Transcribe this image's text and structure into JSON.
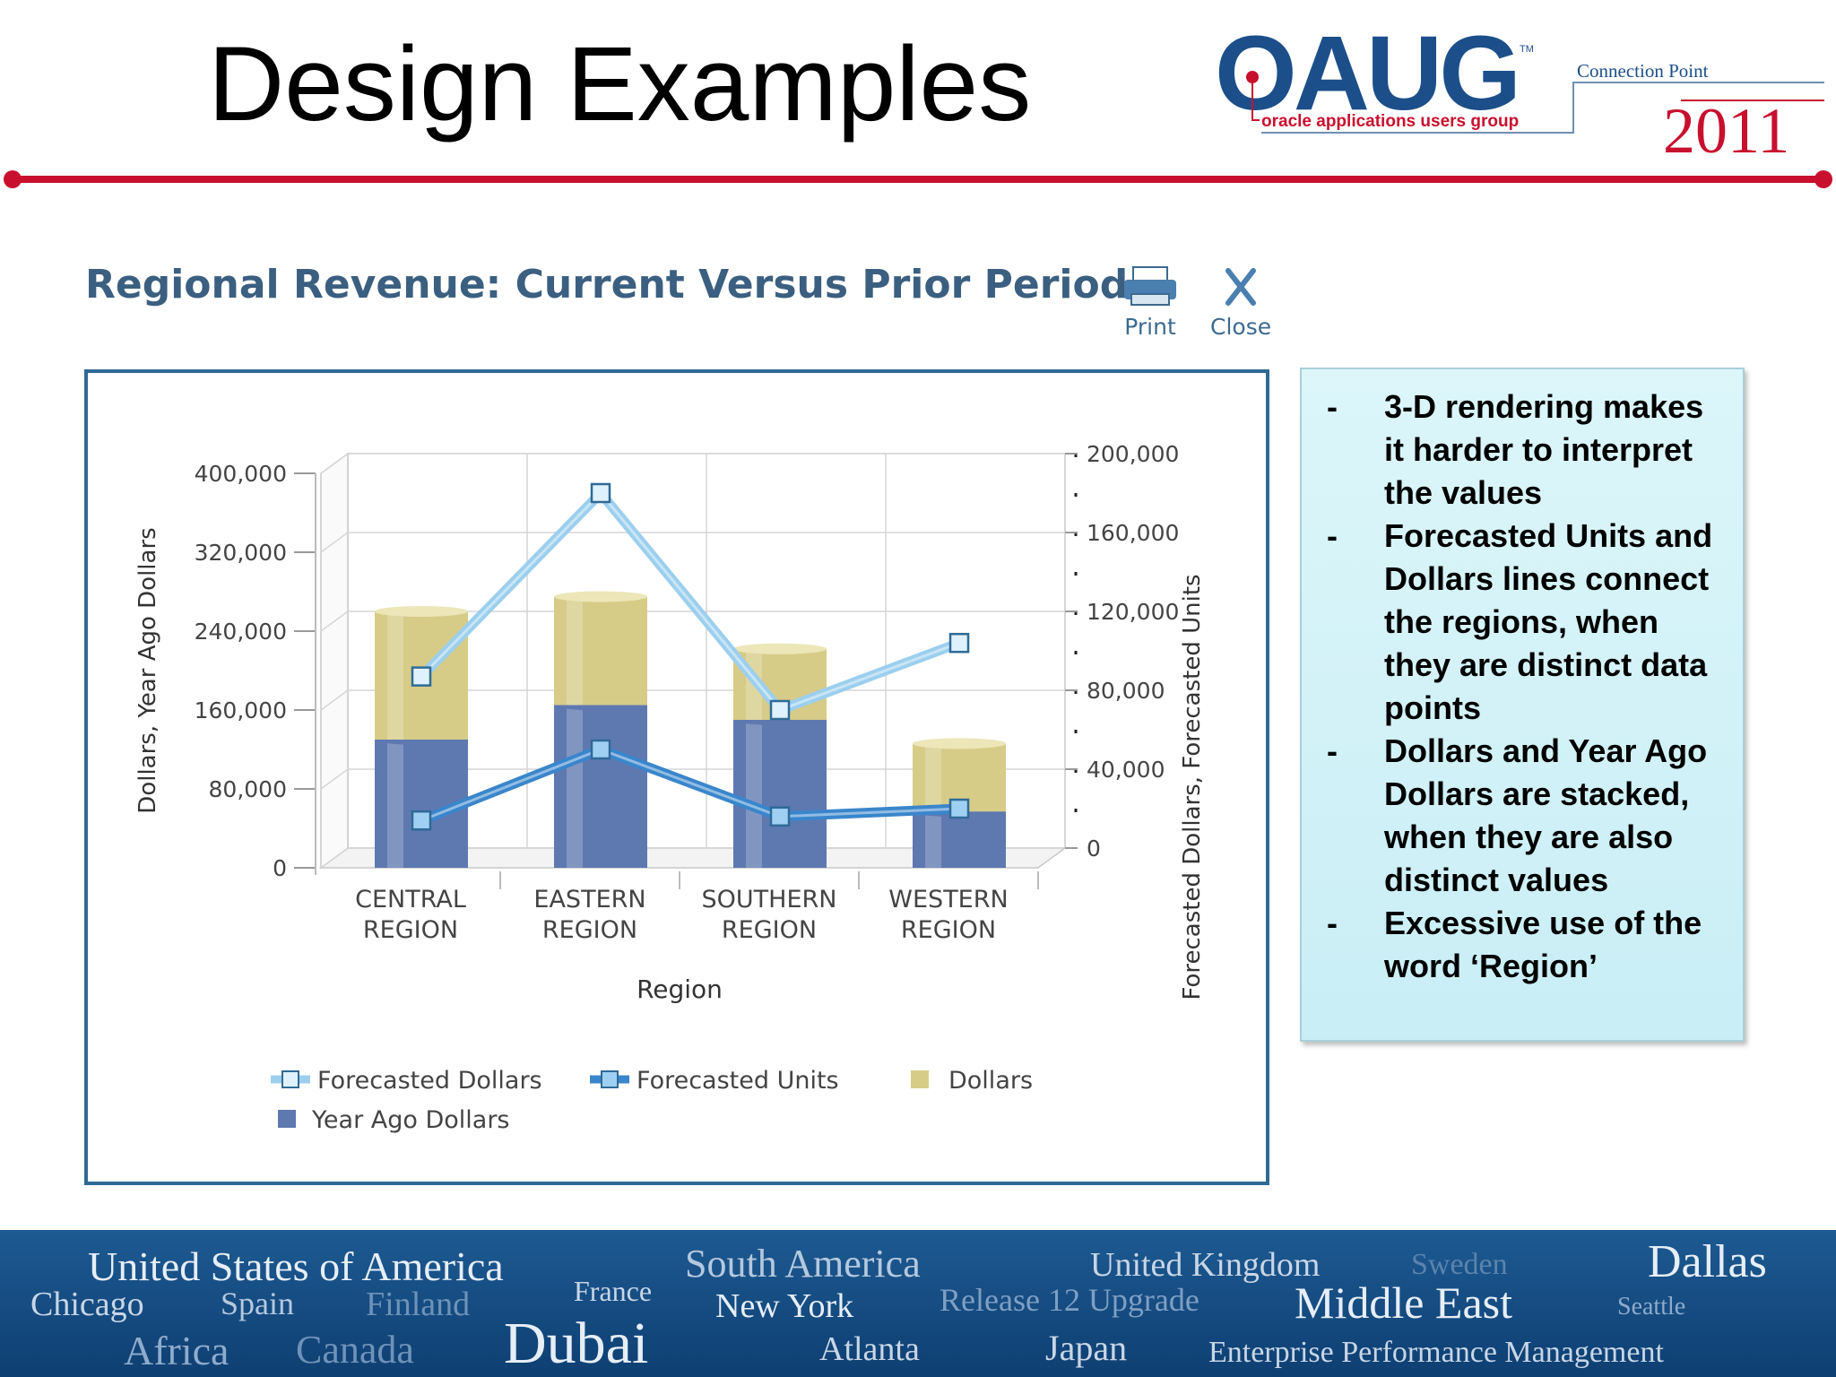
{
  "slide": {
    "title": "Design Examples"
  },
  "logo": {
    "brand": "OAUG",
    "tm": "TM",
    "tagline": "oracle applications users group",
    "event": "Connection Point",
    "year": "2011"
  },
  "report": {
    "title": "Regional Revenue: Current Versus Prior Period",
    "print_label": "Print",
    "close_label": "Close"
  },
  "chart_data": {
    "type": "bar",
    "categories": [
      [
        "CENTRAL",
        "REGION"
      ],
      [
        "EASTERN",
        "REGION"
      ],
      [
        "SOUTHERN",
        "REGION"
      ],
      [
        "WESTERN",
        "REGION"
      ]
    ],
    "xlabel": "Region",
    "ylabel_left": "Dollars, Year Ago Dollars",
    "ylabel_right": "Forecasted Dollars, Forecasted Units",
    "left_ylim": [
      0,
      400000
    ],
    "left_ticks": [
      "0",
      "80,000",
      "160,000",
      "240,000",
      "320,000",
      "400,000"
    ],
    "right_ylim": [
      0,
      200000
    ],
    "right_ticks": [
      "0",
      "40,000",
      "80,000",
      "120,000",
      "160,000",
      "200,000"
    ],
    "stacked": true,
    "bar_series": [
      {
        "name": "Year Ago Dollars",
        "axis": "left",
        "color": "#5e78b0",
        "values": [
          130000,
          165000,
          150000,
          57000
        ]
      },
      {
        "name": "Dollars",
        "axis": "left",
        "color": "#d6cc88",
        "values": [
          130000,
          110000,
          72000,
          69000
        ]
      }
    ],
    "line_series": [
      {
        "name": "Forecasted Dollars",
        "axis": "right",
        "color": "#9ccfee",
        "values": [
          87000,
          180000,
          70000,
          104000
        ]
      },
      {
        "name": "Forecasted Units",
        "axis": "right",
        "color": "#3a86cc",
        "values": [
          14000,
          50000,
          16000,
          20000
        ]
      }
    ],
    "legend": [
      {
        "name": "Forecasted Dollars",
        "kind": "line",
        "color": "#9ccfee"
      },
      {
        "name": "Forecasted Units",
        "kind": "line",
        "color": "#3a86cc"
      },
      {
        "name": "Dollars",
        "kind": "square",
        "color": "#d6cc88"
      },
      {
        "name": "Year Ago Dollars",
        "kind": "square",
        "color": "#5e78b0"
      }
    ],
    "legend_position": "bottom",
    "grid": true,
    "rendering": "3d"
  },
  "notes": [
    {
      "dash": "-",
      "text": "3-D rendering makes it harder to interpret the values"
    },
    {
      "dash": "-",
      "text": "Forecasted Units and Dollars lines connect the regions, when they are distinct data points"
    },
    {
      "dash": "-",
      "text": "Dollars and Year Ago Dollars are stacked, when they are also distinct values"
    },
    {
      "dash": "-",
      "text": "Excessive use of the word ‘Region’"
    }
  ],
  "footer_words": [
    "United States of America",
    "South America",
    "United Kingdom",
    "Sweden",
    "Dallas",
    "Chicago",
    "Spain",
    "Finland",
    "France",
    "New York",
    "Release 12 Upgrade",
    "Middle East",
    "Seattle",
    "Africa",
    "Canada",
    "Dubai",
    "Atlanta",
    "Japan",
    "Enterprise Performance Management"
  ]
}
